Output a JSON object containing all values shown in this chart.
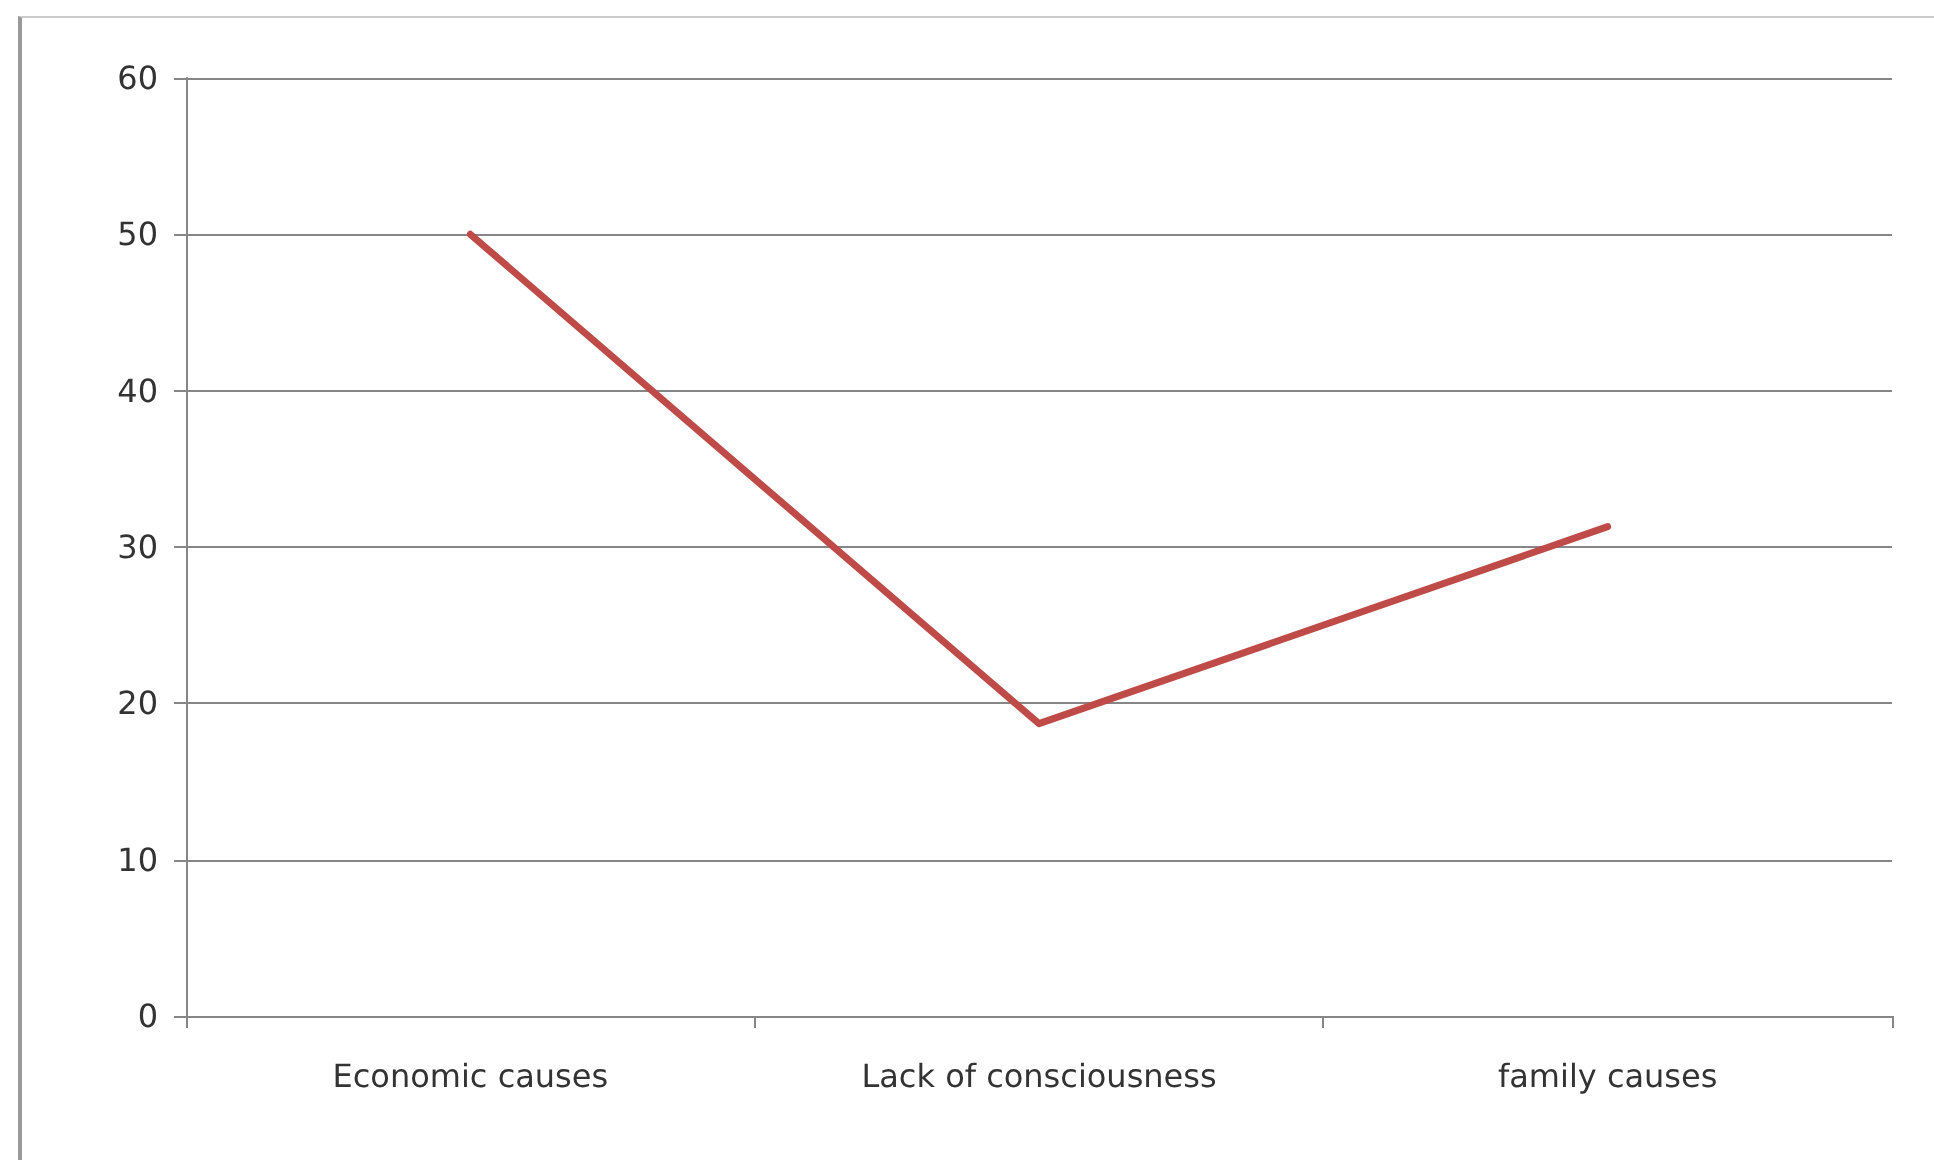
{
  "chart_data": {
    "type": "line",
    "categories": [
      "Economic causes",
      "Lack of consciousness",
      "family causes"
    ],
    "series": [
      {
        "color": "#be4b48",
        "values": [
          50,
          18.7,
          31.3
        ]
      }
    ],
    "ylim": [
      0,
      60
    ],
    "yticks": [
      0,
      10,
      20,
      30,
      40,
      50,
      60
    ],
    "grid": "y",
    "marker": "none",
    "line_style": "solid"
  }
}
